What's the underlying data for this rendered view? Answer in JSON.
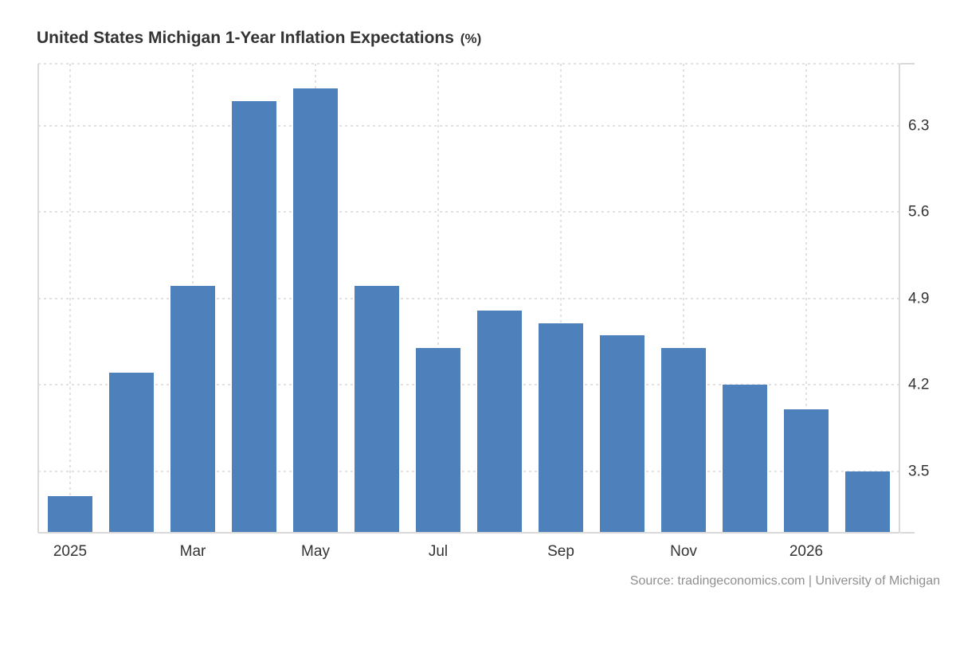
{
  "title": {
    "text": "United States Michigan 1-Year Inflation Expectations",
    "unit": "(%)"
  },
  "source": {
    "text": "Source: tradingeconomics.com | University of Michigan"
  },
  "colors": {
    "bar-color": "#4e80bc",
    "grid-color": "#e1e1e1",
    "axis-color": "#d9d9d9",
    "text-color": "#333333",
    "source-color": "#8f8f8f",
    "bg-color": "#ffffff"
  },
  "chart_data": {
    "type": "bar",
    "title": "United States Michigan 1-Year Inflation Expectations (%)",
    "xlabel": "",
    "ylabel": "%",
    "categories": [
      "Jan 2025",
      "Feb 2025",
      "Mar 2025",
      "Apr 2025",
      "May 2025",
      "Jun 2025",
      "Jul 2025",
      "Aug 2025",
      "Sep 2025",
      "Oct 2025",
      "Nov 2025",
      "Dec 2025",
      "Jan 2026",
      "Feb 2026"
    ],
    "values": [
      3.3,
      4.3,
      5.0,
      6.5,
      6.6,
      5.0,
      4.5,
      4.8,
      4.7,
      4.6,
      4.5,
      4.2,
      4.0,
      3.5
    ],
    "x_ticks": [
      {
        "label": "2025",
        "index": 0
      },
      {
        "label": "Mar",
        "index": 2
      },
      {
        "label": "May",
        "index": 4
      },
      {
        "label": "Jul",
        "index": 6
      },
      {
        "label": "Sep",
        "index": 8
      },
      {
        "label": "Nov",
        "index": 10
      },
      {
        "label": "2026",
        "index": 12
      }
    ],
    "yticks": [
      {
        "label": "6.3",
        "value": 6.3
      },
      {
        "label": "5.6",
        "value": 5.6
      },
      {
        "label": "4.9",
        "value": 4.9
      },
      {
        "label": "4.2",
        "value": 4.2
      },
      {
        "label": "3.5",
        "value": 3.5
      }
    ],
    "ylim": [
      3.0,
      6.8
    ],
    "grid": "dotted",
    "legend": false,
    "yaxis_position": "right",
    "source": "Source: tradingeconomics.com | University of Michigan"
  }
}
